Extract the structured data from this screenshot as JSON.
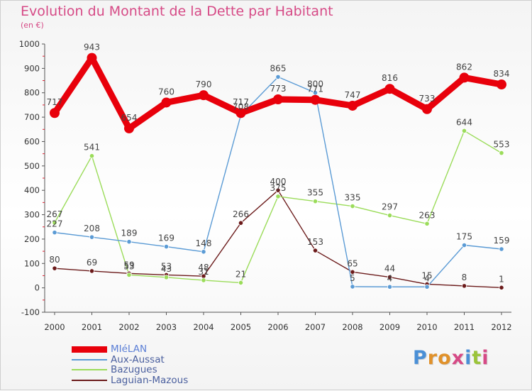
{
  "title": "Evolution du Montant de la Dette par Habitant",
  "subtitle": "(en €)",
  "logo": {
    "text": "Proxiti"
  },
  "chart_data": {
    "type": "line",
    "title": "Evolution du Montant de la Dette par Habitant",
    "ylabel": "(en €)",
    "xlabel": "",
    "x": [
      "2000",
      "2001",
      "2002",
      "2003",
      "2004",
      "2005",
      "2006",
      "2007",
      "2008",
      "2009",
      "2010",
      "2011",
      "2012"
    ],
    "ylim": [
      -100,
      1000
    ],
    "yticks": [
      "-100",
      "0",
      "100",
      "200",
      "300",
      "400",
      "500",
      "600",
      "700",
      "800",
      "900",
      "1000"
    ],
    "grid": false,
    "legend_position": "bottom-left",
    "series": [
      {
        "name": "MIéLAN",
        "color": "#e8000b",
        "values": [
          717,
          943,
          654,
          760,
          790,
          717,
          773,
          771,
          747,
          816,
          733,
          862,
          834
        ],
        "labels": [
          "717",
          "943",
          "654",
          "760",
          "790",
          "717",
          "773",
          "771",
          "747",
          "816",
          "733",
          "862",
          "834"
        ]
      },
      {
        "name": "Aux-Aussat",
        "color": "#5b9bd5",
        "values": [
          227,
          208,
          189,
          169,
          148,
          708,
          865,
          800,
          5,
          4,
          4,
          175,
          159
        ],
        "labels": [
          "227",
          "208",
          "189",
          "169",
          "148",
          "708",
          "865",
          "800",
          "5",
          "4",
          "4",
          "175",
          "159"
        ]
      },
      {
        "name": "Bazugues",
        "color": "#9bdc5a",
        "values": [
          267,
          541,
          53,
          43,
          31,
          21,
          375,
          355,
          335,
          297,
          263,
          644,
          553
        ],
        "labels": [
          "267",
          "541",
          "53",
          "43",
          "31",
          "21",
          "375",
          "355",
          "335",
          "297",
          "263",
          "644",
          "553"
        ]
      },
      {
        "name": "Laguian-Mazous",
        "color": "#6b1a1a",
        "values": [
          80,
          69,
          59,
          53,
          48,
          266,
          400,
          153,
          65,
          44,
          15,
          8,
          1
        ],
        "labels": [
          "80",
          "69",
          "59",
          "53",
          "48",
          "266",
          "400",
          "153",
          "65",
          "44",
          "15",
          "8",
          "1"
        ]
      }
    ]
  }
}
